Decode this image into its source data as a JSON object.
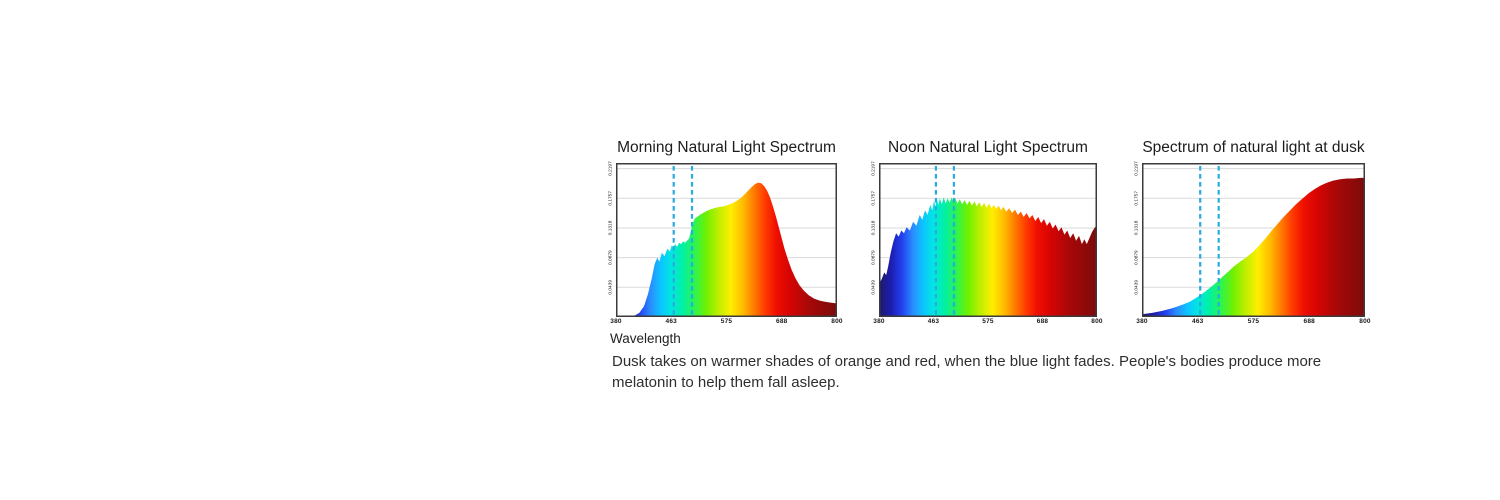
{
  "figure": {
    "caption": "Dusk takes on warmer shades of orange and red, when the blue light fades. People's bodies produce more melatonin to help them fall asleep."
  },
  "accents": {
    "dashed_line_color": "#29abe2",
    "grid_color": "#dadada",
    "frame_color": "#3b3b3b",
    "title_color": "#1c1c1c",
    "caption_color": "#2e2e2e",
    "tick_color": "#1a1a1a",
    "plot_background": "#ffffff"
  },
  "spectrum_gradient": [
    {
      "at": 0.0,
      "color": "#1b1b66"
    },
    {
      "at": 0.055,
      "color": "#1d1db0"
    },
    {
      "at": 0.105,
      "color": "#2240ee"
    },
    {
      "at": 0.155,
      "color": "#2a8cff"
    },
    {
      "at": 0.205,
      "color": "#0cc6ff"
    },
    {
      "at": 0.25,
      "color": "#00e6e0"
    },
    {
      "at": 0.3,
      "color": "#00f0a8"
    },
    {
      "at": 0.35,
      "color": "#27f556"
    },
    {
      "at": 0.41,
      "color": "#71f000"
    },
    {
      "at": 0.465,
      "color": "#c0ee00"
    },
    {
      "at": 0.52,
      "color": "#ffee00"
    },
    {
      "at": 0.575,
      "color": "#ffbb00"
    },
    {
      "at": 0.625,
      "color": "#ff7a00"
    },
    {
      "at": 0.675,
      "color": "#ff3a00"
    },
    {
      "at": 0.725,
      "color": "#ef0f00"
    },
    {
      "at": 0.79,
      "color": "#d40404"
    },
    {
      "at": 0.87,
      "color": "#a90808"
    },
    {
      "at": 1.0,
      "color": "#7c0a0a"
    }
  ],
  "chart_data": [
    {
      "type": "area",
      "title": "Morning Natural Light Spectrum",
      "xlabel": "Wavelength",
      "x_ticks": [
        "380",
        "463",
        "575",
        "688",
        "800"
      ],
      "x_tick_values": [
        380,
        463,
        575,
        688,
        800
      ],
      "y_ticks": [
        "0.2197",
        "0.1757",
        "0.1318",
        "0.0879",
        "0.0439"
      ],
      "y_tick_values": [
        0.2197,
        0.1757,
        0.1318,
        0.0879,
        0.0439
      ],
      "x_range": [
        380,
        800
      ],
      "y_range": [
        0,
        0.228
      ],
      "grid": "horizontal",
      "legend": "none",
      "dashed_lines_nm": [
        468,
        505
      ],
      "points": [
        [
          380,
          0
        ],
        [
          400,
          0
        ],
        [
          408,
          0.002
        ],
        [
          415,
          0.006
        ],
        [
          422,
          0.016
        ],
        [
          428,
          0.034
        ],
        [
          434,
          0.058
        ],
        [
          438,
          0.078
        ],
        [
          442,
          0.088
        ],
        [
          445,
          0.082
        ],
        [
          449,
          0.095
        ],
        [
          453,
          0.09
        ],
        [
          457,
          0.101
        ],
        [
          461,
          0.097
        ],
        [
          464,
          0.106
        ],
        [
          467,
          0.102
        ],
        [
          471,
          0.108
        ],
        [
          475,
          0.104
        ],
        [
          479,
          0.11
        ],
        [
          483,
          0.108
        ],
        [
          487,
          0.112
        ],
        [
          491,
          0.11
        ],
        [
          495,
          0.113
        ],
        [
          499,
          0.116
        ],
        [
          503,
          0.128
        ],
        [
          507,
          0.14
        ],
        [
          511,
          0.146
        ],
        [
          517,
          0.149
        ],
        [
          523,
          0.152
        ],
        [
          530,
          0.155
        ],
        [
          538,
          0.158
        ],
        [
          546,
          0.16
        ],
        [
          554,
          0.162
        ],
        [
          562,
          0.163
        ],
        [
          570,
          0.164
        ],
        [
          578,
          0.166
        ],
        [
          586,
          0.168
        ],
        [
          594,
          0.171
        ],
        [
          602,
          0.175
        ],
        [
          610,
          0.18
        ],
        [
          618,
          0.186
        ],
        [
          626,
          0.192
        ],
        [
          634,
          0.197
        ],
        [
          640,
          0.199
        ],
        [
          646,
          0.198
        ],
        [
          652,
          0.194
        ],
        [
          658,
          0.187
        ],
        [
          664,
          0.177
        ],
        [
          670,
          0.164
        ],
        [
          676,
          0.149
        ],
        [
          682,
          0.133
        ],
        [
          688,
          0.116
        ],
        [
          694,
          0.1
        ],
        [
          701,
          0.084
        ],
        [
          708,
          0.07
        ],
        [
          716,
          0.057
        ],
        [
          724,
          0.047
        ],
        [
          733,
          0.039
        ],
        [
          743,
          0.032
        ],
        [
          754,
          0.027
        ],
        [
          766,
          0.024
        ],
        [
          780,
          0.022
        ],
        [
          800,
          0.02
        ]
      ]
    },
    {
      "type": "area",
      "title": "Noon Natural Light Spectrum",
      "xlabel": "",
      "x_ticks": [
        "380",
        "463",
        "575",
        "688",
        "800"
      ],
      "x_tick_values": [
        380,
        463,
        575,
        688,
        800
      ],
      "y_ticks": [
        "0.2197",
        "0.1757",
        "0.1318",
        "0.0879",
        "0.0439"
      ],
      "y_tick_values": [
        0.2197,
        0.1757,
        0.1318,
        0.0879,
        0.0439
      ],
      "x_range": [
        380,
        800
      ],
      "y_range": [
        0,
        0.228
      ],
      "grid": "horizontal",
      "legend": "none",
      "dashed_lines_nm": [
        468,
        505
      ],
      "points": [
        [
          380,
          0.049
        ],
        [
          384,
          0.056
        ],
        [
          388,
          0.066
        ],
        [
          391,
          0.062
        ],
        [
          394,
          0.075
        ],
        [
          398,
          0.096
        ],
        [
          402,
          0.112
        ],
        [
          406,
          0.124
        ],
        [
          410,
          0.119
        ],
        [
          414,
          0.128
        ],
        [
          418,
          0.124
        ],
        [
          422,
          0.133
        ],
        [
          427,
          0.128
        ],
        [
          432,
          0.141
        ],
        [
          437,
          0.135
        ],
        [
          442,
          0.151
        ],
        [
          446,
          0.144
        ],
        [
          450,
          0.158
        ],
        [
          454,
          0.151
        ],
        [
          458,
          0.166
        ],
        [
          461,
          0.158
        ],
        [
          464,
          0.172
        ],
        [
          467,
          0.163
        ],
        [
          470,
          0.175
        ],
        [
          473,
          0.166
        ],
        [
          476,
          0.176
        ],
        [
          480,
          0.167
        ],
        [
          484,
          0.177
        ],
        [
          488,
          0.168
        ],
        [
          492,
          0.176
        ],
        [
          496,
          0.169
        ],
        [
          500,
          0.177
        ],
        [
          504,
          0.17
        ],
        [
          508,
          0.176
        ],
        [
          512,
          0.168
        ],
        [
          517,
          0.174
        ],
        [
          522,
          0.167
        ],
        [
          527,
          0.173
        ],
        [
          532,
          0.166
        ],
        [
          537,
          0.172
        ],
        [
          542,
          0.165
        ],
        [
          547,
          0.171
        ],
        [
          552,
          0.164
        ],
        [
          557,
          0.17
        ],
        [
          562,
          0.163
        ],
        [
          567,
          0.169
        ],
        [
          572,
          0.162
        ],
        [
          577,
          0.168
        ],
        [
          582,
          0.161
        ],
        [
          587,
          0.166
        ],
        [
          592,
          0.16
        ],
        [
          597,
          0.165
        ],
        [
          602,
          0.158
        ],
        [
          607,
          0.163
        ],
        [
          613,
          0.156
        ],
        [
          619,
          0.161
        ],
        [
          625,
          0.154
        ],
        [
          631,
          0.159
        ],
        [
          637,
          0.151
        ],
        [
          643,
          0.156
        ],
        [
          649,
          0.148
        ],
        [
          655,
          0.154
        ],
        [
          661,
          0.146
        ],
        [
          667,
          0.151
        ],
        [
          673,
          0.142
        ],
        [
          679,
          0.148
        ],
        [
          685,
          0.139
        ],
        [
          691,
          0.145
        ],
        [
          697,
          0.135
        ],
        [
          703,
          0.141
        ],
        [
          709,
          0.131
        ],
        [
          715,
          0.137
        ],
        [
          721,
          0.127
        ],
        [
          727,
          0.133
        ],
        [
          733,
          0.122
        ],
        [
          739,
          0.128
        ],
        [
          745,
          0.117
        ],
        [
          751,
          0.124
        ],
        [
          757,
          0.113
        ],
        [
          763,
          0.12
        ],
        [
          769,
          0.108
        ],
        [
          774,
          0.115
        ],
        [
          779,
          0.108
        ],
        [
          784,
          0.116
        ],
        [
          790,
          0.126
        ],
        [
          795,
          0.132
        ],
        [
          800,
          0.136
        ]
      ]
    },
    {
      "type": "area",
      "title": "Spectrum of natural light at dusk",
      "xlabel": "",
      "x_ticks": [
        "380",
        "463",
        "575",
        "688",
        "800"
      ],
      "x_tick_values": [
        380,
        463,
        575,
        688,
        800
      ],
      "y_ticks": [
        "0.2197",
        "0.1757",
        "0.1318",
        "0.0879",
        "0.0439"
      ],
      "y_tick_values": [
        0.2197,
        0.1757,
        0.1318,
        0.0879,
        0.0439
      ],
      "x_range": [
        380,
        800
      ],
      "y_range": [
        0,
        0.228
      ],
      "grid": "horizontal",
      "legend": "none",
      "dashed_lines_nm": [
        468,
        505
      ],
      "points": [
        [
          380,
          0.004
        ],
        [
          395,
          0.006
        ],
        [
          410,
          0.009
        ],
        [
          425,
          0.013
        ],
        [
          440,
          0.018
        ],
        [
          452,
          0.023
        ],
        [
          463,
          0.03
        ],
        [
          475,
          0.036
        ],
        [
          487,
          0.043
        ],
        [
          500,
          0.051
        ],
        [
          512,
          0.059
        ],
        [
          524,
          0.067
        ],
        [
          536,
          0.075
        ],
        [
          548,
          0.082
        ],
        [
          560,
          0.088
        ],
        [
          575,
          0.097
        ],
        [
          588,
          0.107
        ],
        [
          600,
          0.117
        ],
        [
          612,
          0.128
        ],
        [
          624,
          0.138
        ],
        [
          636,
          0.148
        ],
        [
          648,
          0.157
        ],
        [
          660,
          0.166
        ],
        [
          672,
          0.174
        ],
        [
          688,
          0.184
        ],
        [
          700,
          0.19
        ],
        [
          712,
          0.195
        ],
        [
          724,
          0.199
        ],
        [
          736,
          0.202
        ],
        [
          750,
          0.204
        ],
        [
          764,
          0.205
        ],
        [
          778,
          0.205
        ],
        [
          790,
          0.206
        ],
        [
          800,
          0.206
        ]
      ]
    }
  ]
}
